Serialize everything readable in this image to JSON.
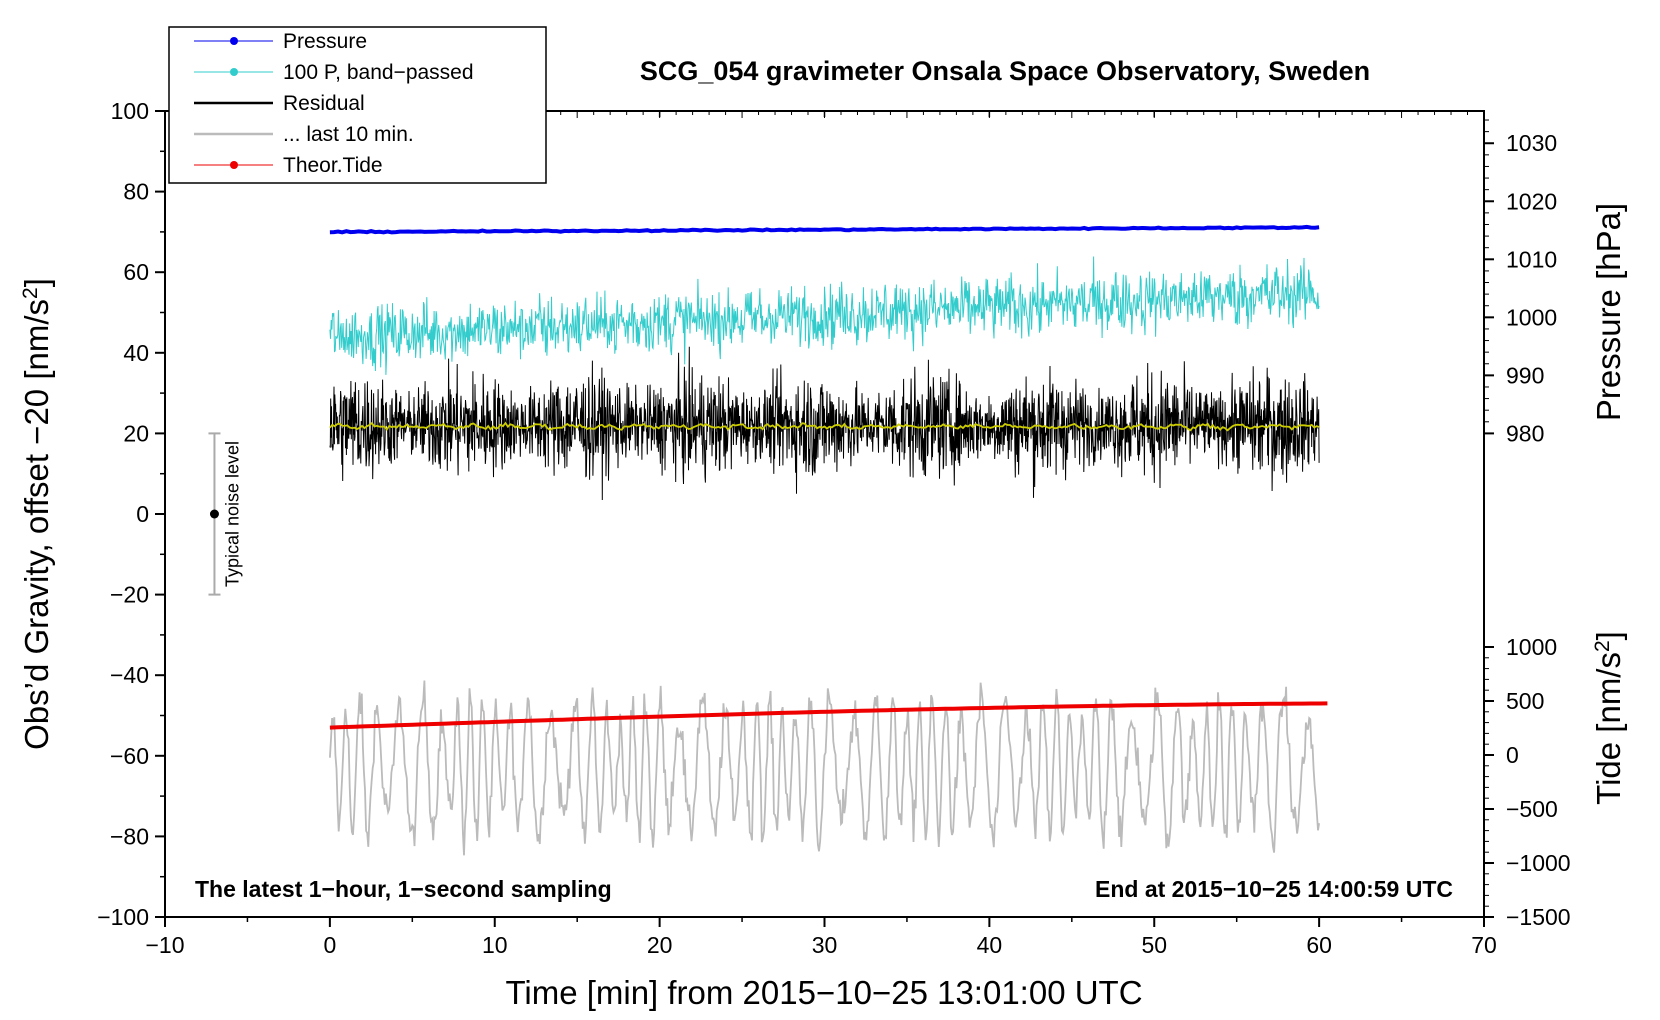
{
  "chart_data": {
    "type": "line",
    "title": "SCG_054 gravimeter Onsala Space Observatory, Sweden",
    "xlabel": "Time [min] from 2015−10−25 13:01:00 UTC",
    "ylabel": "Obs’d Gravity, offset −20 [nm/s²]",
    "ylabel_parts": {
      "main": "Obs’d Gravity, offset −20 [nm/s",
      "sup": "2",
      "tail": "]"
    },
    "xlim": [
      -10,
      70
    ],
    "ylim": [
      -100,
      100
    ],
    "x_ticks": [
      -10,
      0,
      10,
      20,
      30,
      40,
      50,
      60,
      70
    ],
    "x_tick_labels": [
      "−10",
      "0",
      "10",
      "20",
      "30",
      "40",
      "50",
      "60",
      "70"
    ],
    "y_ticks": [
      -100,
      -80,
      -60,
      -40,
      -20,
      0,
      20,
      40,
      60,
      80,
      100
    ],
    "y_tick_labels": [
      "−100",
      "−80",
      "−60",
      "−40",
      "−20",
      "0",
      "20",
      "40",
      "60",
      "80",
      "100"
    ],
    "right_axes": [
      {
        "label": "Pressure [hPa]",
        "ticks": [
          980,
          990,
          1000,
          1010,
          1020,
          1030
        ],
        "tick_labels": [
          "980",
          "990",
          "1000",
          "1010",
          "1020",
          "1030"
        ],
        "map_hpa": [
          980,
          1030
        ],
        "map_left_units": [
          20,
          92
        ]
      },
      {
        "label_main": "Tide [nm/s",
        "label_sup": "2",
        "label_tail": "]",
        "ticks": [
          -1500,
          -1000,
          -500,
          0,
          500,
          1000
        ],
        "tick_labels": [
          "−1500",
          "−1000",
          "−500",
          "0",
          "500",
          "1000"
        ],
        "map_tide": [
          -1500,
          1000
        ],
        "map_left_units": [
          -100,
          -33
        ]
      }
    ],
    "legend": {
      "position": "top-left",
      "entries": [
        {
          "label": "Pressure",
          "color": "#0000ee",
          "marker": true
        },
        {
          "label": "100 P, band−passed",
          "color": "#33cccc",
          "marker": true
        },
        {
          "label": "Residual",
          "color": "#000000",
          "marker": false
        },
        {
          "label": "... last 10 min.",
          "color": "#bbbbbb",
          "marker": false
        },
        {
          "label": "Theor.Tide",
          "color": "#ee0000",
          "marker": true
        }
      ]
    },
    "series": [
      {
        "name": "Pressure",
        "color": "#0000ee",
        "x": [
          0,
          60
        ],
        "values": [
          1014.7,
          1015.5
        ],
        "unit": "hPa",
        "axis": "right-pressure"
      },
      {
        "name": "100 P, band−passed",
        "color": "#33cccc",
        "x_range": [
          0,
          60
        ],
        "center_start": 44,
        "center_end": 55,
        "amplitude": 6,
        "axis": "left"
      },
      {
        "name": "Residual",
        "color": "#000000",
        "x_range": [
          0,
          60
        ],
        "center": 22,
        "amplitude": 18,
        "axis": "left"
      },
      {
        "name": "Residual smoothed",
        "color": "#cccc00",
        "x_range": [
          0,
          60
        ],
        "center": 21.7,
        "axis": "left"
      },
      {
        "name": "... last 10 min.",
        "color": "#bbbbbb",
        "x_range": [
          0,
          60
        ],
        "center": -63,
        "amplitude": 18,
        "axis": "left"
      },
      {
        "name": "Theor.Tide",
        "color": "#ee0000",
        "x": [
          0,
          60.5
        ],
        "values": [
          -53,
          -47
        ],
        "axis": "left"
      }
    ],
    "noise_bar": {
      "x": -7,
      "center": 0,
      "low": -20,
      "high": 20,
      "label": "Typical noise level"
    },
    "annotations": {
      "left": "The latest 1−hour, 1−second sampling",
      "right": "End at 2015−10−25 14:00:59 UTC"
    }
  }
}
